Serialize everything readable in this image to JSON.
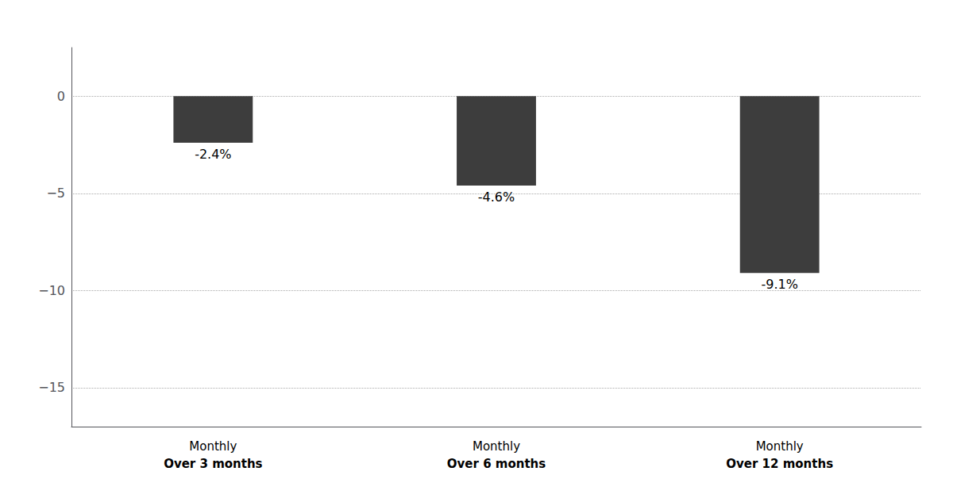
{
  "chart_data": {
    "type": "bar",
    "categories": [
      "Monthly\nOver 3 months",
      "Monthly\nOver 6 months",
      "Monthly\nOver 12 months"
    ],
    "values": [
      -2.4,
      -4.6,
      -9.1
    ],
    "value_labels": [
      "-2.4%",
      "-4.6%",
      "-9.1%"
    ],
    "data_labels": true,
    "color": "#3d3d3d",
    "ylim": [
      -17,
      2.5
    ],
    "yticks": [
      0,
      {
        "value": -5,
        "label": "−5"
      },
      {
        "value": -10,
        "label": "−10"
      },
      {
        "value": -15,
        "label": "−15"
      }
    ],
    "grid": true
  }
}
